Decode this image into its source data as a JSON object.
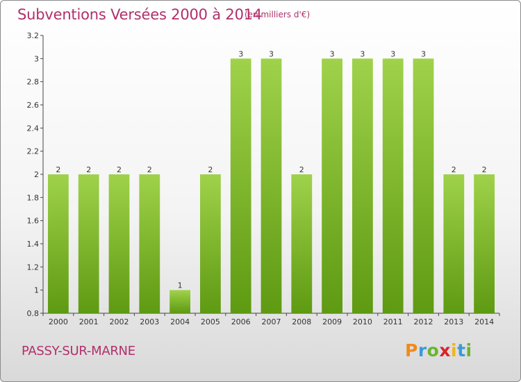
{
  "title": "Subventions Versées 2000 à 2014",
  "subtitle": "(en milliers d'€)",
  "location": "PASSY-SUR-MARNE",
  "logo": {
    "text": "Proxiti",
    "letter_colors": [
      "#f08a1c",
      "#3a9ad9",
      "#6ab42d",
      "#d8232a",
      "#f0b41c",
      "#3a9ad9",
      "#6ab42d"
    ]
  },
  "colors": {
    "bar_top": "#9fd24a",
    "bar_bottom": "#5e9a12",
    "axis": "#444444",
    "grid": "#dddddd",
    "text": "#333333"
  },
  "chart_data": {
    "type": "bar",
    "title": "Subventions Versées 2000 à 2014",
    "subtitle": "(en milliers d'€)",
    "categories": [
      "2000",
      "2001",
      "2002",
      "2003",
      "2004",
      "2005",
      "2006",
      "2007",
      "2008",
      "2009",
      "2010",
      "2011",
      "2012",
      "2013",
      "2014"
    ],
    "values": [
      2,
      2,
      2,
      2,
      1,
      2,
      3,
      3,
      2,
      3,
      3,
      3,
      3,
      2,
      2
    ],
    "data_labels": [
      "2",
      "2",
      "2",
      "2",
      "1",
      "2",
      "3",
      "3",
      "2",
      "3",
      "3",
      "3",
      "3",
      "2",
      "2"
    ],
    "ylim": [
      0.8,
      3.2
    ],
    "y_ticks": [
      0.8,
      1,
      1.2,
      1.4,
      1.6,
      1.8,
      2,
      2.2,
      2.4,
      2.6,
      2.8,
      3,
      3.2
    ],
    "y_tick_labels": [
      "0.8",
      "1",
      "1.2",
      "1.4",
      "1.6",
      "1.8",
      "2",
      "2.2",
      "2.4",
      "2.6",
      "2.8",
      "3",
      "3.2"
    ],
    "xlabel": "",
    "ylabel": "",
    "grid": false,
    "legend": "none"
  }
}
